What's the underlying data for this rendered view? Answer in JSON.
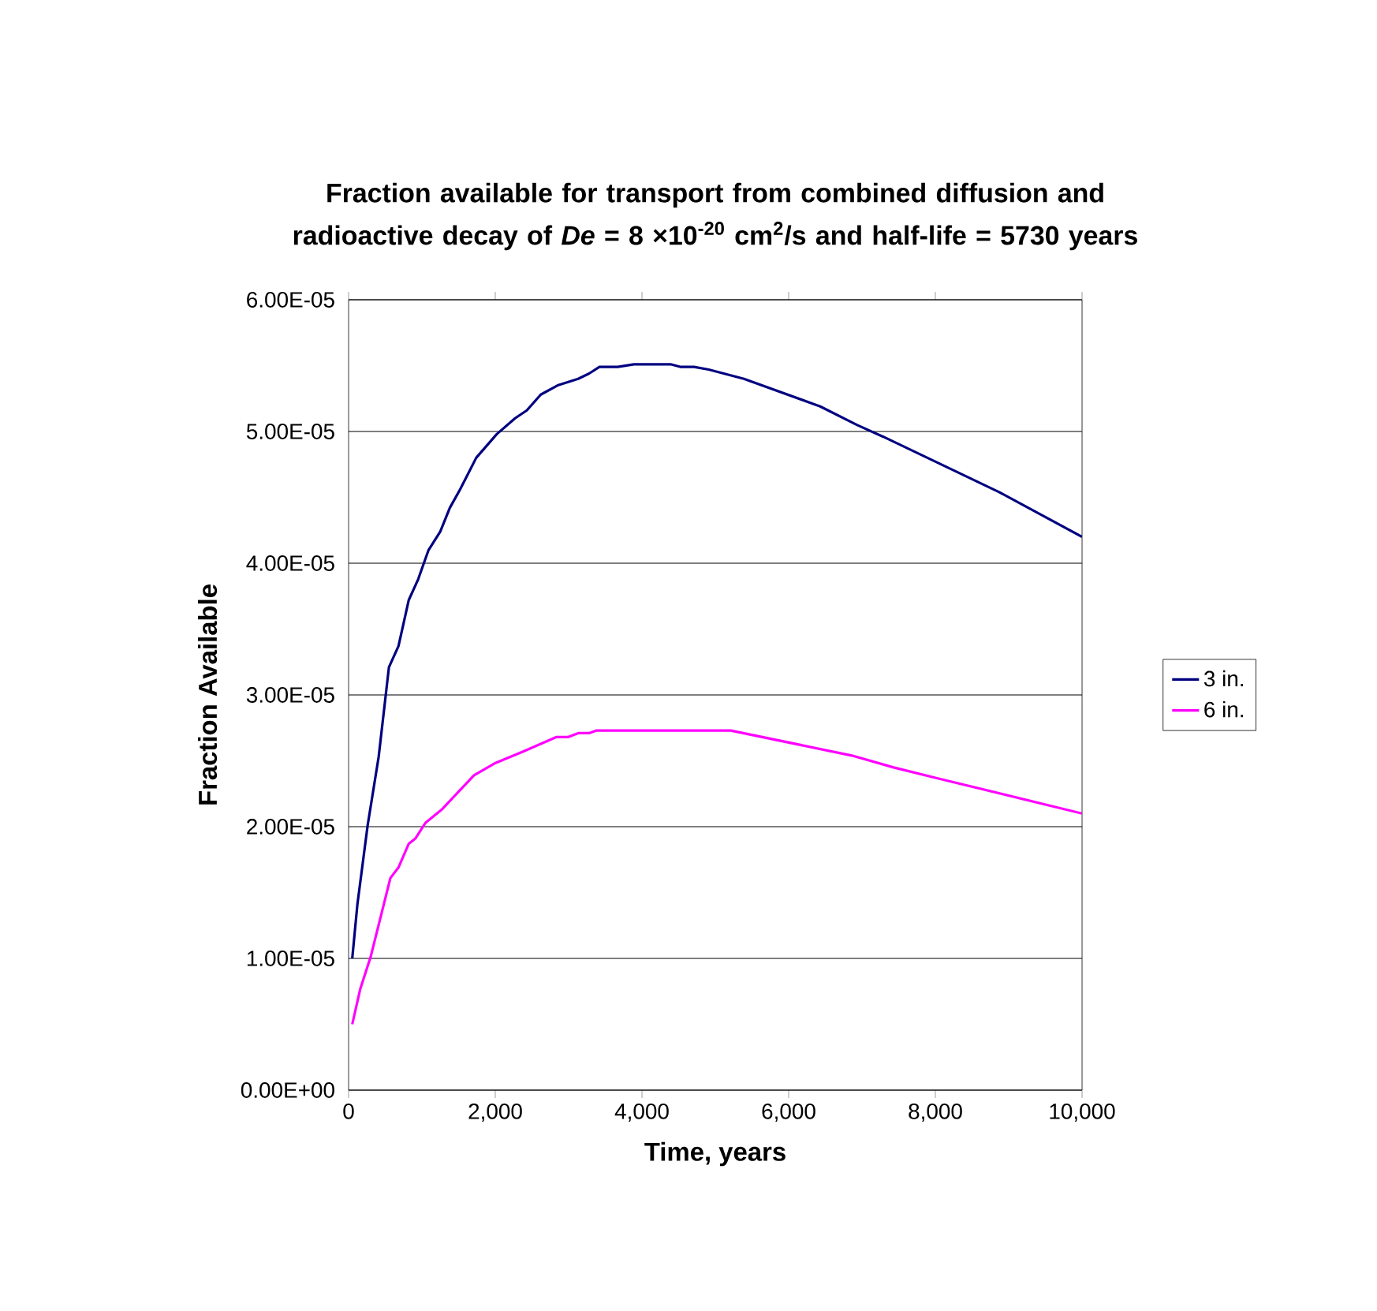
{
  "chart_data": {
    "type": "line",
    "title": "Fraction available for transport from combined diffusion and radioactive decay of *De* = 8 ×10$^{-20}$ cm$^{2}$/s and half-life = 5730 years",
    "xlabel": "Time, years",
    "ylabel": "Fraction Available",
    "series": [
      {
        "name": "3 in.",
        "color": "#000080",
        "x": [
          50,
          120,
          260,
          410,
          550,
          680,
          820,
          950,
          1090,
          1250,
          1380,
          1520,
          1740,
          2020,
          2270,
          2430,
          2620,
          2850,
          3130,
          3280,
          3420,
          3670,
          3890,
          4390,
          4530,
          4710,
          4910,
          5390,
          6430,
          6930,
          7290,
          8870,
          10000
        ],
        "values": [
          1e-05,
          1.41e-05,
          2.01e-05,
          2.53e-05,
          3.21e-05,
          3.37e-05,
          3.72e-05,
          3.88e-05,
          4.1e-05,
          4.24e-05,
          4.42e-05,
          4.56e-05,
          4.8e-05,
          4.98e-05,
          5.1e-05,
          5.16e-05,
          5.28e-05,
          5.35e-05,
          5.4e-05,
          5.44e-05,
          5.49e-05,
          5.49e-05,
          5.51e-05,
          5.51e-05,
          5.49e-05,
          5.49e-05,
          5.47e-05,
          5.4e-05,
          5.19e-05,
          5.05e-05,
          4.96e-05,
          4.54e-05,
          4.2e-05
        ]
      },
      {
        "name": "6 in.",
        "color": "#ff00ff",
        "x": [
          50,
          160,
          300,
          570,
          680,
          820,
          910,
          1050,
          1270,
          1710,
          1990,
          2380,
          2830,
          2990,
          3130,
          3280,
          3380,
          5210,
          6860,
          7430,
          8010,
          10000
        ],
        "values": [
          5e-06,
          7.7e-06,
          1.01e-05,
          1.61e-05,
          1.69e-05,
          1.87e-05,
          1.91e-05,
          2.03e-05,
          2.13e-05,
          2.39e-05,
          2.48e-05,
          2.57e-05,
          2.68e-05,
          2.68e-05,
          2.71e-05,
          2.71e-05,
          2.73e-05,
          2.73e-05,
          2.54e-05,
          2.45e-05,
          2.37e-05,
          2.1e-05
        ]
      }
    ],
    "xlim": [
      0,
      10000
    ],
    "ylim": [
      0,
      6e-05
    ],
    "xticks": [
      0,
      {
        "value": 2000,
        "label": "2,000"
      },
      {
        "value": 4000,
        "label": "4,000"
      },
      {
        "value": 6000,
        "label": "6,000"
      },
      {
        "value": 8000,
        "label": "8,000"
      },
      {
        "value": 10000,
        "label": "10,000"
      }
    ],
    "yticks": [
      {
        "value": 0,
        "label": "0.00E+00"
      },
      {
        "value": 1e-05,
        "label": "1.00E-05"
      },
      {
        "value": 2e-05,
        "label": "2.00E-05"
      },
      {
        "value": 3e-05,
        "label": "3.00E-05"
      },
      {
        "value": 4e-05,
        "label": "4.00E-05"
      },
      {
        "value": 5e-05,
        "label": "5.00E-05"
      },
      {
        "value": 6e-05,
        "label": "6.00E-05"
      }
    ],
    "grid": "y",
    "legend": "right",
    "marker": "none",
    "line_style": "solid"
  }
}
